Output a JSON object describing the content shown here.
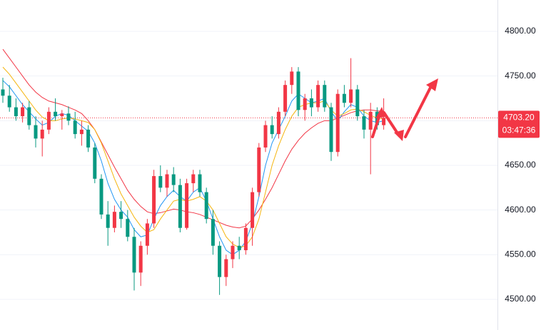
{
  "chart_data": {
    "type": "candlestick",
    "ylim": [
      4465.7,
      4835.1
    ],
    "yticks": [
      {
        "value": 4500,
        "label": "4500.00"
      },
      {
        "value": 4550,
        "label": "4550.00"
      },
      {
        "value": 4600,
        "label": "4600.00"
      },
      {
        "value": 4650,
        "label": "4650.00"
      },
      {
        "value": 4700,
        "label": "4700.00"
      },
      {
        "value": 4750,
        "label": "4750.00"
      },
      {
        "value": 4800,
        "label": "4800.00"
      }
    ],
    "grid": true,
    "up_color": "#f23645",
    "down_color": "#089981",
    "open": [
      4735,
      4728,
      4715,
      4705,
      4715,
      4695,
      4680,
      4690,
      4710,
      4705,
      4708,
      4700,
      4685,
      4690,
      4670,
      4635,
      4595,
      4580,
      4598,
      4590,
      4570,
      4530,
      4560,
      4585,
      4638,
      4625,
      4640,
      4628,
      4580,
      4630,
      4640,
      4620,
      4590,
      4560,
      4525,
      4545,
      4560,
      4555,
      4580,
      4620,
      4670,
      4695,
      4685,
      4710,
      4740,
      4755,
      4712,
      4725,
      4715,
      4740,
      4715,
      4665,
      4730,
      4720,
      4735,
      4705,
      4690,
      4710,
      4695
    ],
    "high": [
      4748,
      4740,
      4725,
      4720,
      4722,
      4705,
      4700,
      4715,
      4725,
      4712,
      4716,
      4710,
      4700,
      4695,
      4675,
      4640,
      4610,
      4605,
      4610,
      4600,
      4580,
      4565,
      4590,
      4645,
      4650,
      4645,
      4648,
      4635,
      4635,
      4645,
      4645,
      4625,
      4600,
      4565,
      4550,
      4565,
      4570,
      4585,
      4625,
      4675,
      4700,
      4705,
      4715,
      4745,
      4760,
      4760,
      4730,
      4735,
      4745,
      4745,
      4720,
      4735,
      4740,
      4770,
      4740,
      4712,
      4720,
      4715,
      4725
    ],
    "low": [
      4720,
      4710,
      4700,
      4698,
      4690,
      4670,
      4660,
      4685,
      4700,
      4690,
      4695,
      4680,
      4672,
      4665,
      4630,
      4590,
      4560,
      4575,
      4580,
      4565,
      4510,
      4515,
      4550,
      4580,
      4620,
      4615,
      4620,
      4575,
      4578,
      4620,
      4615,
      4585,
      4550,
      4505,
      4515,
      4535,
      4545,
      4550,
      4560,
      4615,
      4665,
      4680,
      4680,
      4705,
      4730,
      4705,
      4700,
      4705,
      4710,
      4710,
      4655,
      4660,
      4715,
      4715,
      4700,
      4680,
      4640,
      4690,
      4690
    ],
    "close": [
      4728,
      4715,
      4705,
      4715,
      4695,
      4680,
      4690,
      4710,
      4705,
      4708,
      4700,
      4685,
      4690,
      4670,
      4635,
      4595,
      4580,
      4598,
      4590,
      4570,
      4530,
      4560,
      4585,
      4638,
      4625,
      4640,
      4628,
      4580,
      4630,
      4640,
      4620,
      4590,
      4560,
      4525,
      4545,
      4560,
      4555,
      4580,
      4620,
      4670,
      4695,
      4685,
      4710,
      4740,
      4755,
      4712,
      4725,
      4715,
      4740,
      4715,
      4665,
      4730,
      4720,
      4735,
      4705,
      4690,
      4710,
      4695,
      4703.2
    ],
    "series": [
      {
        "color": "#f23645",
        "values": [
          4780,
          4770,
          4760,
          4750,
          4740,
          4732,
          4726,
          4722,
          4720,
          4718,
          4715,
          4712,
          4708,
          4700,
          4690,
          4676,
          4662,
          4648,
          4635,
          4622,
          4612,
          4604,
          4598,
          4596,
          4597,
          4599,
          4601,
          4600,
          4598,
          4597,
          4595,
          4592,
          4589,
          4586,
          4583,
          4581,
          4580,
          4582,
          4590,
          4600,
          4612,
          4625,
          4640,
          4655,
          4668,
          4678,
          4686,
          4692,
          4697,
          4700,
          4700,
          4703,
          4706,
          4709,
          4711,
          4712,
          4712,
          4711,
          4710
        ]
      },
      {
        "color": "#2196f3",
        "values": [
          4745,
          4738,
          4728,
          4718,
          4710,
          4702,
          4695,
          4698,
          4705,
          4708,
          4706,
          4700,
          4694,
          4688,
          4675,
          4655,
          4630,
          4612,
          4600,
          4592,
          4578,
          4570,
          4572,
          4590,
          4605,
          4615,
          4622,
          4615,
          4610,
          4620,
          4625,
          4610,
          4590,
          4570,
          4555,
          4550,
          4555,
          4565,
          4585,
          4615,
          4650,
          4675,
          4690,
          4705,
          4722,
          4730,
          4725,
          4720,
          4722,
          4725,
          4710,
          4700,
          4710,
          4718,
          4715,
          4705,
          4700,
          4698,
          4700
        ]
      },
      {
        "color": "#f5b50f",
        "values": [
          4760,
          4752,
          4742,
          4732,
          4722,
          4712,
          4704,
          4700,
          4700,
          4702,
          4703,
          4702,
          4700,
          4698,
          4690,
          4675,
          4655,
          4635,
          4618,
          4605,
          4592,
          4582,
          4575,
          4578,
          4590,
          4600,
          4610,
          4612,
          4610,
          4612,
          4615,
          4610,
          4600,
          4585,
          4570,
          4562,
          4558,
          4560,
          4570,
          4590,
          4620,
          4650,
          4672,
          4690,
          4705,
          4715,
          4718,
          4720,
          4720,
          4722,
          4712,
          4705,
          4708,
          4712,
          4713,
          4710,
          4706,
          4703,
          4702
        ]
      }
    ],
    "last_price": {
      "value": 4703.2,
      "label": "4703.20"
    },
    "countdown": "03:47:36"
  }
}
